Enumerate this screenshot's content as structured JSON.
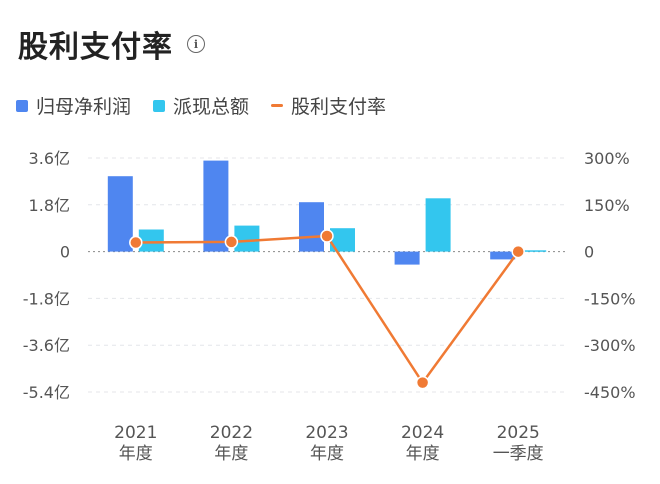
{
  "header": {
    "title": "股利支付率"
  },
  "legend": [
    {
      "label": "归母净利润",
      "color": "#4f86f0",
      "shape": "bar"
    },
    {
      "label": "派现总额",
      "color": "#33c6ee",
      "shape": "bar"
    },
    {
      "label": "股利支付率",
      "color": "#f07a34",
      "shape": "line"
    }
  ],
  "chart_data": {
    "type": "bar",
    "categories": [
      [
        "2021",
        "年度"
      ],
      [
        "2022",
        "年度"
      ],
      [
        "2023",
        "年度"
      ],
      [
        "2024",
        "年度"
      ],
      [
        "2025",
        "一季度"
      ]
    ],
    "series": [
      {
        "name": "归母净利润",
        "type": "bar",
        "axis": "left",
        "values": [
          2.9,
          3.5,
          1.9,
          -0.5,
          -0.3
        ],
        "color": "#4f86f0"
      },
      {
        "name": "派现总额",
        "type": "bar",
        "axis": "left",
        "values": [
          0.85,
          1.0,
          0.9,
          2.05,
          0.05
        ],
        "color": "#33c6ee"
      },
      {
        "name": "股利支付率",
        "type": "line",
        "axis": "right",
        "values": [
          29,
          31,
          50,
          -420,
          0
        ],
        "color": "#f07a34"
      }
    ],
    "left_axis": {
      "ticks": [
        "3.6亿",
        "1.8亿",
        "0",
        "-1.8亿",
        "-3.6亿",
        "-5.4亿"
      ],
      "min": -5.4,
      "max": 3.6
    },
    "right_axis": {
      "ticks": [
        "300%",
        "150%",
        "0",
        "-150%",
        "-300%",
        "-450%"
      ],
      "min": -450,
      "max": 300
    },
    "grid": "dashed-horizontal"
  }
}
